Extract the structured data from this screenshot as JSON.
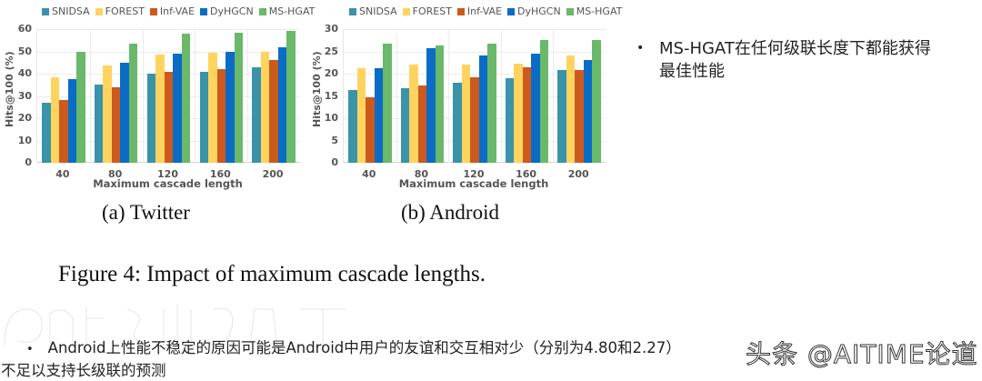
{
  "colors": {
    "SNIDSA": "#3a93a8",
    "FOREST": "#ffd45e",
    "Inf-VAE": "#cc5a1e",
    "DyHGCN": "#0a6cc4",
    "MS-HGAT": "#6ab86a"
  },
  "chart_data": [
    {
      "type": "bar",
      "title": "(a) Twitter",
      "xlabel": "Maximum cascade length",
      "ylabel": "Hits@100 (%)",
      "ylim": [
        0,
        60
      ],
      "yticks": [
        0,
        10,
        20,
        30,
        40,
        50,
        60
      ],
      "categories": [
        "40",
        "80",
        "120",
        "160",
        "200"
      ],
      "legend_position": "top",
      "grid": true,
      "series": [
        {
          "name": "SNIDSA",
          "values": [
            27,
            35,
            40,
            41,
            43
          ]
        },
        {
          "name": "FOREST",
          "values": [
            38.5,
            43.5,
            48.5,
            49.5,
            50
          ]
        },
        {
          "name": "Inf-VAE",
          "values": [
            28,
            34,
            41,
            42,
            46
          ]
        },
        {
          "name": "DyHGCN",
          "values": [
            37.5,
            45,
            49,
            50,
            52
          ]
        },
        {
          "name": "MS-HGAT",
          "values": [
            50,
            53.5,
            58,
            58.5,
            59
          ]
        }
      ]
    },
    {
      "type": "bar",
      "title": "(b) Android",
      "xlabel": "Maximum cascade length",
      "ylabel": "Hits@100 (%)",
      "ylim": [
        0,
        30
      ],
      "yticks": [
        0,
        5,
        10,
        15,
        20,
        25,
        30
      ],
      "categories": [
        "40",
        "80",
        "120",
        "160",
        "200"
      ],
      "legend_position": "top",
      "grid": true,
      "series": [
        {
          "name": "SNIDSA",
          "values": [
            16.3,
            16.8,
            18,
            19,
            20.9
          ]
        },
        {
          "name": "FOREST",
          "values": [
            21.3,
            22,
            22.1,
            22.2,
            24.1
          ]
        },
        {
          "name": "Inf-VAE",
          "values": [
            14.7,
            17.3,
            19.1,
            21.5,
            20.9
          ]
        },
        {
          "name": "DyHGCN",
          "values": [
            21.2,
            25.8,
            24,
            24.5,
            23.1
          ]
        },
        {
          "name": "MS-HGAT",
          "values": [
            26.8,
            26.4,
            26.8,
            27.5,
            27.5
          ]
        }
      ]
    }
  ],
  "captions": {
    "twitter": "(a) Twitter",
    "android": "(b) Android",
    "figure": "Figure 4: Impact of maximum cascade lengths."
  },
  "bullets": {
    "right_1_line1": "MS-HGAT在任何级联长度下都能获得",
    "right_1_line2": "最佳性能",
    "bottom_line1": "Android上性能不稳定的原因可能是Android中用户的友谊和交互相对少（分别为4.80和2.27）",
    "bottom_line2": "不足以支持长级联的预测",
    "bullet_glyph": "•"
  },
  "watermark": "头条 @AITIME论道"
}
